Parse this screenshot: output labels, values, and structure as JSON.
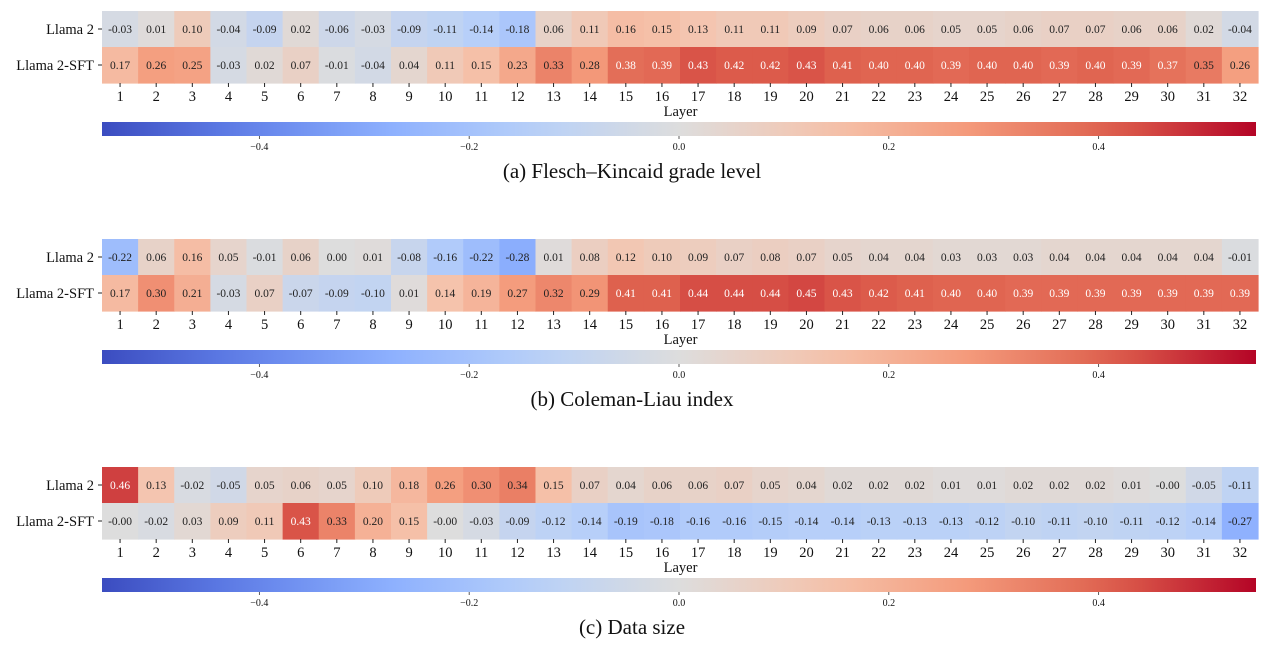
{
  "chart_data": [
    {
      "type": "heatmap",
      "caption": "(a) Flesch–Kincaid grade level",
      "xlabel": "Layer",
      "rows": [
        "Llama 2",
        "Llama 2-SFT"
      ],
      "columns": [
        "1",
        "2",
        "3",
        "4",
        "5",
        "6",
        "7",
        "8",
        "9",
        "10",
        "11",
        "12",
        "13",
        "14",
        "15",
        "16",
        "17",
        "18",
        "19",
        "20",
        "21",
        "22",
        "23",
        "24",
        "25",
        "26",
        "27",
        "28",
        "29",
        "30",
        "31",
        "32"
      ],
      "values": [
        [
          -0.03,
          0.01,
          0.1,
          -0.04,
          -0.09,
          0.02,
          -0.06,
          -0.03,
          -0.09,
          -0.11,
          -0.14,
          -0.18,
          0.06,
          0.11,
          0.16,
          0.15,
          0.13,
          0.11,
          0.11,
          0.09,
          0.07,
          0.06,
          0.06,
          0.05,
          0.05,
          0.06,
          0.07,
          0.07,
          0.06,
          0.06,
          0.02,
          -0.04
        ],
        [
          0.17,
          0.26,
          0.25,
          -0.03,
          0.02,
          0.07,
          -0.01,
          -0.04,
          0.04,
          0.11,
          0.15,
          0.23,
          0.33,
          0.28,
          0.38,
          0.39,
          0.43,
          0.42,
          0.42,
          0.43,
          0.41,
          0.4,
          0.4,
          0.39,
          0.4,
          0.4,
          0.39,
          0.4,
          0.39,
          0.37,
          0.35,
          0.26
        ]
      ],
      "colorbar": {
        "colormap": "coolwarm",
        "vmin": -0.55,
        "vmax": 0.55,
        "tick_values": [
          -0.4,
          -0.2,
          0.0,
          0.2,
          0.4
        ],
        "tick_labels": [
          "−0.4",
          "−0.2",
          "0.0",
          "0.2",
          "0.4"
        ]
      }
    },
    {
      "type": "heatmap",
      "caption": "(b) Coleman-Liau index",
      "xlabel": "Layer",
      "rows": [
        "Llama 2",
        "Llama 2-SFT"
      ],
      "columns": [
        "1",
        "2",
        "3",
        "4",
        "5",
        "6",
        "7",
        "8",
        "9",
        "10",
        "11",
        "12",
        "13",
        "14",
        "15",
        "16",
        "17",
        "18",
        "19",
        "20",
        "21",
        "22",
        "23",
        "24",
        "25",
        "26",
        "27",
        "28",
        "29",
        "30",
        "31",
        "32"
      ],
      "values": [
        [
          -0.22,
          0.06,
          0.16,
          0.05,
          -0.01,
          0.06,
          0.0,
          0.01,
          -0.08,
          -0.16,
          -0.22,
          -0.28,
          0.01,
          0.08,
          0.12,
          0.1,
          0.09,
          0.07,
          0.08,
          0.07,
          0.05,
          0.04,
          0.04,
          0.03,
          0.03,
          0.03,
          0.04,
          0.04,
          0.04,
          0.04,
          0.04,
          -0.01
        ],
        [
          0.17,
          0.3,
          0.21,
          -0.03,
          0.07,
          -0.07,
          -0.09,
          -0.1,
          0.01,
          0.14,
          0.19,
          0.27,
          0.32,
          0.29,
          0.41,
          0.41,
          0.44,
          0.44,
          0.44,
          0.45,
          0.43,
          0.42,
          0.41,
          0.4,
          0.4,
          0.39,
          0.39,
          0.39,
          0.39,
          0.39,
          0.39,
          0.39
        ]
      ],
      "colorbar": {
        "colormap": "coolwarm",
        "vmin": -0.55,
        "vmax": 0.55,
        "tick_values": [
          -0.4,
          -0.2,
          0.0,
          0.2,
          0.4
        ],
        "tick_labels": [
          "−0.4",
          "−0.2",
          "0.0",
          "0.2",
          "0.4"
        ]
      }
    },
    {
      "type": "heatmap",
      "caption": "(c) Data size",
      "xlabel": "Layer",
      "rows": [
        "Llama 2",
        "Llama 2-SFT"
      ],
      "columns": [
        "1",
        "2",
        "3",
        "4",
        "5",
        "6",
        "7",
        "8",
        "9",
        "10",
        "11",
        "12",
        "13",
        "14",
        "15",
        "16",
        "17",
        "18",
        "19",
        "20",
        "21",
        "22",
        "23",
        "24",
        "25",
        "26",
        "27",
        "28",
        "29",
        "30",
        "31",
        "32"
      ],
      "values": [
        [
          0.46,
          0.13,
          -0.02,
          -0.05,
          0.05,
          0.06,
          0.05,
          0.1,
          0.18,
          0.26,
          0.3,
          0.34,
          0.15,
          0.07,
          0.04,
          0.06,
          0.06,
          0.07,
          0.05,
          0.04,
          0.02,
          0.02,
          0.02,
          0.01,
          0.01,
          0.02,
          0.02,
          0.02,
          0.01,
          -0.0,
          -0.05,
          -0.11
        ],
        [
          -0.0,
          -0.02,
          0.03,
          0.09,
          0.11,
          0.43,
          0.33,
          0.2,
          0.15,
          -0.0,
          -0.03,
          -0.09,
          -0.12,
          -0.14,
          -0.19,
          -0.18,
          -0.16,
          -0.16,
          -0.15,
          -0.14,
          -0.14,
          -0.13,
          -0.13,
          -0.13,
          -0.12,
          -0.1,
          -0.11,
          -0.1,
          -0.11,
          -0.12,
          -0.14,
          -0.27
        ]
      ],
      "colorbar": {
        "colormap": "coolwarm",
        "vmin": -0.55,
        "vmax": 0.55,
        "tick_values": [
          -0.4,
          -0.2,
          0.0,
          0.2,
          0.4
        ],
        "tick_labels": [
          "−0.4",
          "−0.2",
          "0.0",
          "0.2",
          "0.4"
        ]
      }
    }
  ]
}
